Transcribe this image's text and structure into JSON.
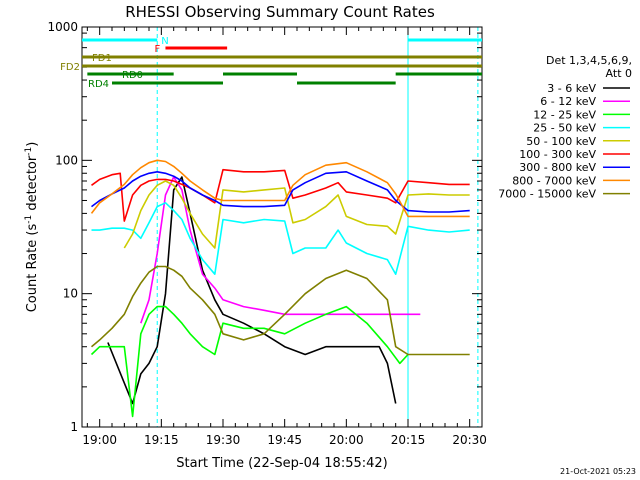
{
  "chart_data": {
    "type": "line",
    "title": "RHESSI Observing Summary Count Rates",
    "xlabel": "Start Time (22-Sep-04 18:55:42)",
    "ylabel_main": "Count Rate (s",
    "ylabel_sup1": "-1",
    "ylabel_mid": " detector",
    "ylabel_sup2": "-1",
    "ylabel_end": ")",
    "yscale": "log",
    "ylim": [
      1,
      1000
    ],
    "xlim": [
      "18:55:42",
      "20:33:00"
    ],
    "grid": false,
    "legend_position": "right",
    "legend_header": [
      "Det 1,3,4,5,6,9,",
      "Att 0"
    ],
    "yticks": [
      {
        "label": "1",
        "value": 1
      },
      {
        "label": "10",
        "value": 10
      },
      {
        "label": "100",
        "value": 100
      },
      {
        "label": "1000",
        "value": 1000
      }
    ],
    "xticks": [
      "19:00",
      "19:15",
      "19:30",
      "19:45",
      "20:00",
      "20:15",
      "20:30"
    ],
    "series": [
      {
        "name": "3 - 6 keV",
        "color": "#000000",
        "x": [
          "19:02",
          "19:08",
          "19:10",
          "19:12",
          "19:14",
          "19:16",
          "19:18",
          "19:20",
          "19:22",
          "19:25",
          "19:28",
          "19:30",
          "19:35",
          "19:40",
          "19:45",
          "19:50",
          "19:55",
          "20:00",
          "20:05",
          "20:08",
          "20:10",
          "20:12"
        ],
        "values": [
          4.3,
          1.5,
          2.5,
          3,
          4,
          10,
          60,
          75,
          40,
          15,
          9,
          7,
          6,
          5,
          4,
          3.5,
          4,
          4,
          4,
          4,
          3,
          1.5
        ]
      },
      {
        "name": "6 - 12 keV",
        "color": "#ff00ff",
        "x": [
          "19:10",
          "19:12",
          "19:14",
          "19:16",
          "19:18",
          "19:20",
          "19:22",
          "19:25",
          "19:28",
          "19:30",
          "19:35",
          "19:40",
          "19:45",
          "19:50",
          "19:55",
          "20:00",
          "20:05",
          "20:10",
          "20:15",
          "20:18"
        ],
        "values": [
          6,
          9,
          20,
          55,
          75,
          60,
          30,
          14,
          11,
          9,
          8,
          7.5,
          7,
          7,
          7,
          7,
          7,
          7,
          7,
          7
        ]
      },
      {
        "name": "12 - 25 keV",
        "color": "#00ff00",
        "x": [
          "18:58",
          "19:00",
          "19:03",
          "19:06",
          "19:08",
          "19:10",
          "19:12",
          "19:14",
          "19:16",
          "19:18",
          "19:20",
          "19:22",
          "19:25",
          "19:28",
          "19:30",
          "19:35",
          "19:40",
          "19:45",
          "19:50",
          "19:55",
          "20:00",
          "20:05",
          "20:10",
          "20:13",
          "20:15"
        ],
        "values": [
          3.5,
          4,
          4,
          4,
          1.2,
          5,
          7,
          8,
          8,
          7,
          6,
          5,
          4,
          3.5,
          6,
          5.5,
          5.5,
          5,
          6,
          7,
          8,
          6,
          4,
          3,
          3.5
        ]
      },
      {
        "name": "25 - 50 keV",
        "color": "#00ffff",
        "x": [
          "18:58",
          "19:00",
          "19:03",
          "19:06",
          "19:08",
          "19:10",
          "19:12",
          "19:14",
          "19:16",
          "19:18",
          "19:20",
          "19:22",
          "19:25",
          "19:28",
          "19:30",
          "19:35",
          "19:40",
          "19:45",
          "19:47",
          "19:50",
          "19:55",
          "19:58",
          "20:00",
          "20:05",
          "20:10",
          "20:12",
          "20:15",
          "20:20",
          "20:25",
          "20:30"
        ],
        "values": [
          30,
          30,
          31,
          31,
          30,
          26,
          34,
          45,
          48,
          42,
          36,
          26,
          18,
          14,
          36,
          34,
          36,
          35,
          20,
          22,
          22,
          30,
          24,
          20,
          18,
          14,
          32,
          30,
          29,
          30
        ]
      },
      {
        "name": "50 - 100 keV",
        "color": "#cccc00",
        "x": [
          "19:06",
          "19:08",
          "19:10",
          "19:12",
          "19:14",
          "19:16",
          "19:18",
          "19:20",
          "19:22",
          "19:25",
          "19:28",
          "19:30",
          "19:35",
          "19:40",
          "19:45",
          "19:47",
          "19:50",
          "19:55",
          "19:58",
          "20:00",
          "20:05",
          "20:10",
          "20:12",
          "20:15",
          "20:20",
          "20:25",
          "20:30"
        ],
        "values": [
          22,
          28,
          42,
          55,
          65,
          70,
          65,
          52,
          40,
          28,
          22,
          60,
          58,
          60,
          62,
          34,
          36,
          45,
          55,
          38,
          33,
          32,
          28,
          55,
          56,
          55,
          55
        ]
      },
      {
        "name": "100 - 300 keV",
        "color": "#ff0000",
        "x": [
          "18:58",
          "19:00",
          "19:03",
          "19:05",
          "19:06",
          "19:08",
          "19:10",
          "19:12",
          "19:14",
          "19:16",
          "19:18",
          "19:20",
          "19:22",
          "19:25",
          "19:28",
          "19:30",
          "19:35",
          "19:40",
          "19:45",
          "19:47",
          "19:50",
          "19:55",
          "19:58",
          "20:00",
          "20:05",
          "20:10",
          "20:12",
          "20:15",
          "20:20",
          "20:25",
          "20:30"
        ],
        "values": [
          65,
          72,
          78,
          80,
          35,
          55,
          65,
          70,
          72,
          72,
          70,
          66,
          62,
          55,
          48,
          85,
          82,
          82,
          84,
          52,
          55,
          62,
          68,
          58,
          55,
          52,
          48,
          70,
          68,
          66,
          66
        ]
      },
      {
        "name": "300 - 800 keV",
        "color": "#0000ff",
        "x": [
          "18:58",
          "19:00",
          "19:03",
          "19:06",
          "19:08",
          "19:10",
          "19:12",
          "19:14",
          "19:16",
          "19:18",
          "19:20",
          "19:22",
          "19:25",
          "19:28",
          "19:30",
          "19:35",
          "19:40",
          "19:45",
          "19:47",
          "19:50",
          "19:55",
          "20:00",
          "20:05",
          "20:10",
          "20:12",
          "20:15",
          "20:20",
          "20:25",
          "20:30"
        ],
        "values": [
          45,
          50,
          56,
          62,
          70,
          76,
          80,
          82,
          80,
          76,
          70,
          62,
          55,
          50,
          46,
          45,
          45,
          46,
          60,
          68,
          80,
          82,
          70,
          60,
          50,
          42,
          41,
          41,
          42
        ]
      },
      {
        "name": "800 - 7000 keV",
        "color": "#ff8800",
        "x": [
          "18:58",
          "19:00",
          "19:03",
          "19:06",
          "19:08",
          "19:10",
          "19:12",
          "19:14",
          "19:16",
          "19:18",
          "19:20",
          "19:22",
          "19:25",
          "19:28",
          "19:30",
          "19:35",
          "19:40",
          "19:45",
          "19:47",
          "19:50",
          "19:55",
          "20:00",
          "20:05",
          "20:10",
          "20:12",
          "20:15",
          "20:20",
          "20:25",
          "20:30"
        ],
        "values": [
          40,
          48,
          56,
          66,
          78,
          88,
          96,
          100,
          98,
          90,
          80,
          70,
          60,
          52,
          50,
          50,
          50,
          50,
          65,
          78,
          92,
          96,
          82,
          68,
          56,
          38,
          38,
          38,
          38
        ]
      },
      {
        "name": "7000 - 15000 keV",
        "color": "#808000",
        "x": [
          "18:58",
          "19:00",
          "19:03",
          "19:06",
          "19:08",
          "19:10",
          "19:12",
          "19:14",
          "19:16",
          "19:18",
          "19:20",
          "19:22",
          "19:25",
          "19:28",
          "19:30",
          "19:35",
          "19:40",
          "19:45",
          "19:50",
          "19:55",
          "20:00",
          "20:05",
          "20:10",
          "20:12",
          "20:15",
          "20:20",
          "20:25",
          "20:30"
        ],
        "values": [
          4,
          4.5,
          5.5,
          7,
          9.5,
          12,
          14.5,
          16,
          16,
          15,
          13.5,
          11,
          9,
          7,
          5,
          4.5,
          5,
          7,
          10,
          13,
          15,
          13,
          9,
          4,
          3.5,
          3.5,
          3.5,
          3.5
        ]
      }
    ],
    "flag_rows": [
      {
        "label": "FD1",
        "color": "#808000",
        "segments": [
          [
            "18:55:42",
            "20:33:00"
          ]
        ]
      },
      {
        "label": "FD2",
        "color": "#808000",
        "segments": [
          [
            "18:55:42",
            "20:33:00"
          ]
        ]
      },
      {
        "label": "RD0",
        "color": "#008000",
        "segments": [
          [
            "18:57",
            "19:18"
          ],
          [
            "19:30",
            "19:48"
          ],
          [
            "20:12",
            "20:33"
          ]
        ]
      },
      {
        "label": "RD4",
        "color": "#008000",
        "segments": [
          [
            "19:03",
            "19:30"
          ],
          [
            "19:48",
            "20:12"
          ]
        ]
      },
      {
        "label": "N",
        "color": "#00ffff",
        "segments": [
          [
            "18:55:42",
            "19:14"
          ],
          [
            "20:15",
            "20:33"
          ]
        ]
      },
      {
        "label": "F",
        "color": "#ff0000",
        "segments": [
          [
            "19:16",
            "19:31"
          ]
        ]
      }
    ],
    "vlines_solid": [
      "18:55:42",
      "20:15"
    ],
    "vlines_dashed": [
      "19:14",
      "20:32"
    ],
    "timestamp": "21-Oct-2021 05:23"
  }
}
